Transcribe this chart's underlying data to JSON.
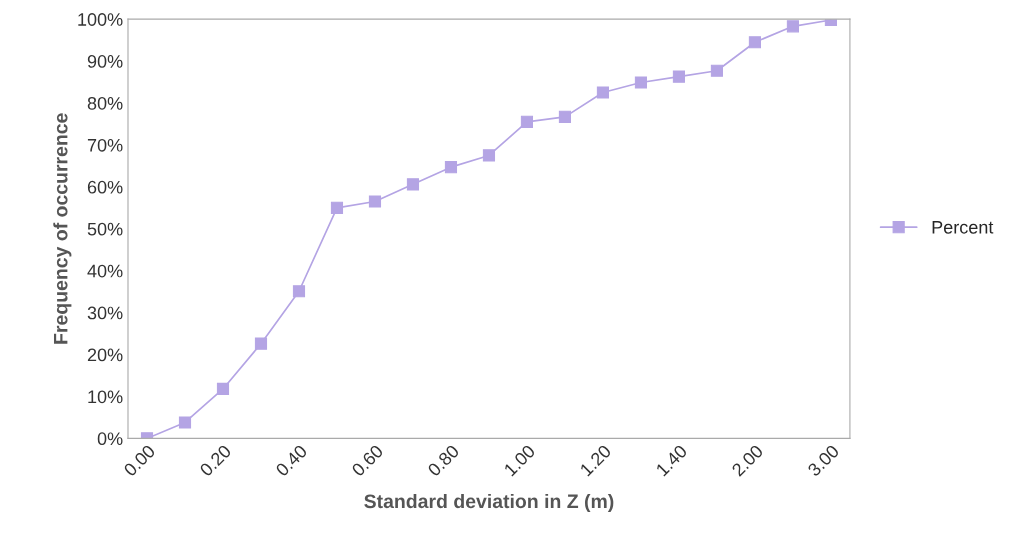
{
  "chart_data": {
    "type": "line",
    "xlabel": "Standard deviation in Z (m)",
    "ylabel": "Frequency of occurrence",
    "categories": [
      "0.00",
      null,
      "0.20",
      null,
      "0.40",
      null,
      "0.60",
      null,
      "0.80",
      null,
      "1.00",
      null,
      "1.20",
      null,
      "1.40",
      null,
      "2.00",
      null,
      "3.00"
    ],
    "series": [
      {
        "name": "Percent",
        "color": "#b4a4e4",
        "values": [
          0,
          3.8,
          11.8,
          22.6,
          35.1,
          55,
          56.5,
          60.6,
          64.7,
          67.5,
          75.5,
          76.7,
          82.5,
          84.9,
          86.3,
          87.7,
          94.5,
          98.3,
          99.8
        ]
      }
    ],
    "ylim": [
      0,
      100
    ],
    "yticks": [
      {
        "value": 0,
        "label": "0%"
      },
      {
        "value": 10,
        "label": "10%"
      },
      {
        "value": 20,
        "label": "20%"
      },
      {
        "value": 30,
        "label": "30%"
      },
      {
        "value": 40,
        "label": "40%"
      },
      {
        "value": 50,
        "label": "50%"
      },
      {
        "value": 60,
        "label": "60%"
      },
      {
        "value": 70,
        "label": "70%"
      },
      {
        "value": 80,
        "label": "80%"
      },
      {
        "value": 90,
        "label": "90%"
      },
      {
        "value": 100,
        "label": "100%"
      }
    ],
    "marker": "square",
    "legend": "right",
    "grid": false
  }
}
